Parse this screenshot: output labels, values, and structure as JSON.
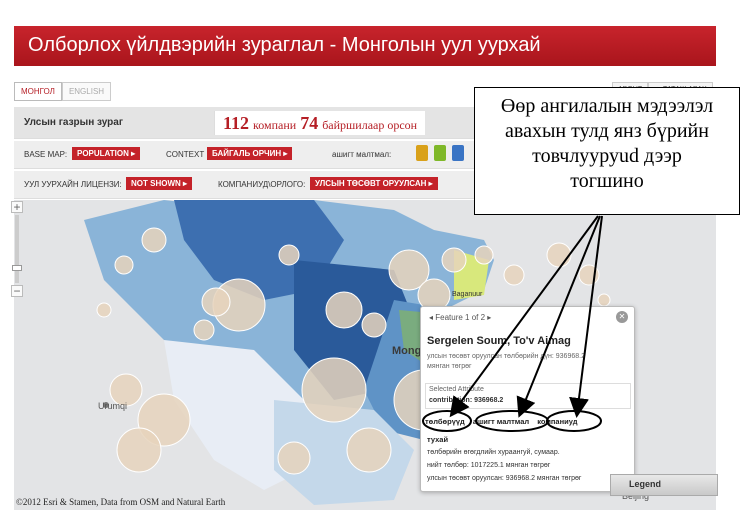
{
  "header": {
    "title": "Олборлох үйлдвэрийн зураглал - Монголын уул уурхай"
  },
  "lang_tabs": [
    {
      "label": "МОНГОЛ",
      "active": true
    },
    {
      "label": "ENGLISH",
      "active": false
    }
  ],
  "top_links": [
    {
      "label": "ABOUT"
    },
    {
      "label": "▲ ТАТАЖ АВАХ"
    }
  ],
  "panel1": {
    "title": "Улсын газрын зураг",
    "summary": {
      "company_count": "112",
      "company_label": "компани",
      "location_count": "74",
      "location_label": "байршилаар орсон"
    }
  },
  "filters": {
    "base_map_label": "BASE MAP:",
    "base_map_value": "POPULATION ▸",
    "context_label": "CONTEXT",
    "context_value": "БАЙГАЛЬ ОРЧИН ▸",
    "minerals_label": "ашигт малтмал:",
    "minerals_icons": [
      {
        "icon": "gold-icon",
        "color": "#d9a11a"
      },
      {
        "icon": "copper-icon",
        "color": "#7fb829"
      },
      {
        "icon": "coal-icon",
        "color": "#3a74c4"
      }
    ],
    "license_label": "УУЛ УУРХАЙН ЛИЦЕНЗИ:",
    "license_value": "NOT SHOWN ▸",
    "companies_label": "КОМПАНИУД\\ОРЛОГО:",
    "companies_value": "УЛСЫН ТӨСӨВТ ОРУУЛСАН ▸"
  },
  "map": {
    "labels": {
      "urumqi": "Urumqi",
      "beijing": "Beijing",
      "mong": "Mong",
      "baganuur": "Baganuur"
    },
    "credit": "©2012 Esri & Stamen, Data from OSM and Natural Earth",
    "accent": "#c42229",
    "zoom_in": "+",
    "zoom_out": "−"
  },
  "popup": {
    "nav": "Feature 1 of 2",
    "close": "✕",
    "title": "Sergelen Soum, To'v Aimag",
    "line1": "улсын төсөвт оруулсан төлбөрийн дүн: 936968.2",
    "line1b": "мянган төгрөг",
    "selected_label": "Selected Attribute",
    "selected_value": "contribution: 936968.2",
    "tabs": [
      "төлбөрүүд",
      "ашигт малтмал",
      "компаниуд"
    ],
    "heading": "тухай",
    "body1": "төлбөрийн өгөгдлийн хураангуй, сумаар.",
    "body2": "нийт төлбөр: 1017225.1 мянган төгрөг",
    "body3": "улсын төсөвт оруулсан: 936968.2 мянган төгрөг"
  },
  "legend": {
    "label": "Legend"
  },
  "callout": {
    "line1": "Өөр ангилалын мэдээлэл",
    "line2": "авахын тулд янз бүрийн",
    "line3": "товчлууруud дээр",
    "line4": "тогшино"
  }
}
